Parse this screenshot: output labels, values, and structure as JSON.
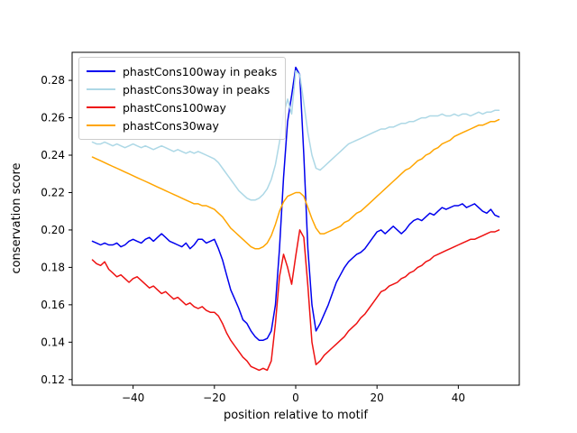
{
  "chart_data": {
    "type": "line",
    "title": "",
    "xlabel": "position relative to motif",
    "ylabel": "conservation score",
    "xlim": [
      -55,
      55
    ],
    "ylim": [
      0.117,
      0.295
    ],
    "xticks": [
      -40,
      -20,
      0,
      20,
      40
    ],
    "xtick_labels": [
      "−40",
      "−20",
      "0",
      "20",
      "40"
    ],
    "yticks": [
      0.12,
      0.14,
      0.16,
      0.18,
      0.2,
      0.22,
      0.24,
      0.26,
      0.28
    ],
    "ytick_labels": [
      "0.12",
      "0.14",
      "0.16",
      "0.18",
      "0.20",
      "0.22",
      "0.24",
      "0.26",
      "0.28"
    ],
    "grid": false,
    "legend_position": "upper-left",
    "x": [
      -50,
      -49,
      -48,
      -47,
      -46,
      -45,
      -44,
      -43,
      -42,
      -41,
      -40,
      -39,
      -38,
      -37,
      -36,
      -35,
      -34,
      -33,
      -32,
      -31,
      -30,
      -29,
      -28,
      -27,
      -26,
      -25,
      -24,
      -23,
      -22,
      -21,
      -20,
      -19,
      -18,
      -17,
      -16,
      -15,
      -14,
      -13,
      -12,
      -11,
      -10,
      -9,
      -8,
      -7,
      -6,
      -5,
      -4,
      -3,
      -2,
      -1,
      0,
      1,
      2,
      3,
      4,
      5,
      6,
      7,
      8,
      9,
      10,
      11,
      12,
      13,
      14,
      15,
      16,
      17,
      18,
      19,
      20,
      21,
      22,
      23,
      24,
      25,
      26,
      27,
      28,
      29,
      30,
      31,
      32,
      33,
      34,
      35,
      36,
      37,
      38,
      39,
      40,
      41,
      42,
      43,
      44,
      45,
      46,
      47,
      48,
      49,
      50
    ],
    "series": [
      {
        "name": "phastCons100way in peaks",
        "color": "#0000ee",
        "values": [
          0.194,
          0.193,
          0.192,
          0.193,
          0.192,
          0.192,
          0.193,
          0.191,
          0.192,
          0.194,
          0.195,
          0.194,
          0.193,
          0.195,
          0.196,
          0.194,
          0.196,
          0.198,
          0.196,
          0.194,
          0.193,
          0.192,
          0.191,
          0.193,
          0.19,
          0.192,
          0.195,
          0.195,
          0.193,
          0.194,
          0.195,
          0.19,
          0.184,
          0.176,
          0.168,
          0.163,
          0.158,
          0.152,
          0.15,
          0.146,
          0.143,
          0.141,
          0.141,
          0.142,
          0.146,
          0.16,
          0.19,
          0.228,
          0.258,
          0.272,
          0.287,
          0.283,
          0.24,
          0.19,
          0.16,
          0.146,
          0.15,
          0.155,
          0.16,
          0.166,
          0.172,
          0.176,
          0.18,
          0.183,
          0.185,
          0.187,
          0.188,
          0.19,
          0.193,
          0.196,
          0.199,
          0.2,
          0.198,
          0.2,
          0.202,
          0.2,
          0.198,
          0.2,
          0.203,
          0.205,
          0.206,
          0.205,
          0.207,
          0.209,
          0.208,
          0.21,
          0.212,
          0.211,
          0.212,
          0.213,
          0.213,
          0.214,
          0.212,
          0.213,
          0.214,
          0.212,
          0.21,
          0.209,
          0.211,
          0.208,
          0.207
        ]
      },
      {
        "name": "phastCons30way in peaks",
        "color": "#add8e6",
        "values": [
          0.247,
          0.246,
          0.246,
          0.247,
          0.246,
          0.245,
          0.246,
          0.245,
          0.244,
          0.245,
          0.246,
          0.245,
          0.244,
          0.245,
          0.244,
          0.243,
          0.244,
          0.245,
          0.244,
          0.243,
          0.242,
          0.243,
          0.242,
          0.241,
          0.242,
          0.241,
          0.242,
          0.241,
          0.24,
          0.239,
          0.238,
          0.236,
          0.233,
          0.23,
          0.227,
          0.224,
          0.221,
          0.219,
          0.217,
          0.216,
          0.216,
          0.217,
          0.219,
          0.222,
          0.227,
          0.235,
          0.247,
          0.262,
          0.27,
          0.262,
          0.285,
          0.283,
          0.268,
          0.252,
          0.24,
          0.233,
          0.232,
          0.234,
          0.236,
          0.238,
          0.24,
          0.242,
          0.244,
          0.246,
          0.247,
          0.248,
          0.249,
          0.25,
          0.251,
          0.252,
          0.253,
          0.254,
          0.254,
          0.255,
          0.255,
          0.256,
          0.257,
          0.257,
          0.258,
          0.258,
          0.259,
          0.26,
          0.26,
          0.261,
          0.261,
          0.261,
          0.262,
          0.261,
          0.261,
          0.262,
          0.261,
          0.262,
          0.262,
          0.261,
          0.262,
          0.263,
          0.262,
          0.263,
          0.263,
          0.264,
          0.264
        ]
      },
      {
        "name": "phastCons100way",
        "color": "#ee1111",
        "values": [
          0.184,
          0.182,
          0.181,
          0.183,
          0.179,
          0.177,
          0.175,
          0.176,
          0.174,
          0.172,
          0.174,
          0.175,
          0.173,
          0.171,
          0.169,
          0.17,
          0.168,
          0.166,
          0.167,
          0.165,
          0.163,
          0.164,
          0.162,
          0.16,
          0.161,
          0.159,
          0.158,
          0.159,
          0.157,
          0.156,
          0.156,
          0.154,
          0.15,
          0.145,
          0.141,
          0.138,
          0.135,
          0.132,
          0.13,
          0.127,
          0.126,
          0.125,
          0.126,
          0.125,
          0.13,
          0.15,
          0.175,
          0.187,
          0.18,
          0.171,
          0.186,
          0.2,
          0.196,
          0.17,
          0.14,
          0.128,
          0.13,
          0.133,
          0.135,
          0.137,
          0.139,
          0.141,
          0.143,
          0.146,
          0.148,
          0.15,
          0.153,
          0.155,
          0.158,
          0.161,
          0.164,
          0.167,
          0.168,
          0.17,
          0.171,
          0.172,
          0.174,
          0.175,
          0.177,
          0.178,
          0.18,
          0.181,
          0.183,
          0.184,
          0.186,
          0.187,
          0.188,
          0.189,
          0.19,
          0.191,
          0.192,
          0.193,
          0.194,
          0.195,
          0.195,
          0.196,
          0.197,
          0.198,
          0.199,
          0.199,
          0.2
        ]
      },
      {
        "name": "phastCons30way",
        "color": "#ffa500",
        "values": [
          0.239,
          0.238,
          0.237,
          0.236,
          0.235,
          0.234,
          0.233,
          0.232,
          0.231,
          0.23,
          0.229,
          0.228,
          0.227,
          0.226,
          0.225,
          0.224,
          0.223,
          0.222,
          0.221,
          0.22,
          0.219,
          0.218,
          0.217,
          0.216,
          0.215,
          0.214,
          0.214,
          0.213,
          0.213,
          0.212,
          0.211,
          0.209,
          0.207,
          0.204,
          0.201,
          0.199,
          0.197,
          0.195,
          0.193,
          0.191,
          0.19,
          0.19,
          0.191,
          0.193,
          0.197,
          0.203,
          0.21,
          0.215,
          0.218,
          0.219,
          0.22,
          0.22,
          0.218,
          0.212,
          0.206,
          0.201,
          0.198,
          0.198,
          0.199,
          0.2,
          0.201,
          0.202,
          0.204,
          0.205,
          0.207,
          0.209,
          0.21,
          0.212,
          0.214,
          0.216,
          0.218,
          0.22,
          0.222,
          0.224,
          0.226,
          0.228,
          0.23,
          0.232,
          0.233,
          0.235,
          0.237,
          0.238,
          0.24,
          0.241,
          0.243,
          0.244,
          0.246,
          0.247,
          0.248,
          0.25,
          0.251,
          0.252,
          0.253,
          0.254,
          0.255,
          0.256,
          0.256,
          0.257,
          0.258,
          0.258,
          0.259
        ]
      }
    ]
  }
}
